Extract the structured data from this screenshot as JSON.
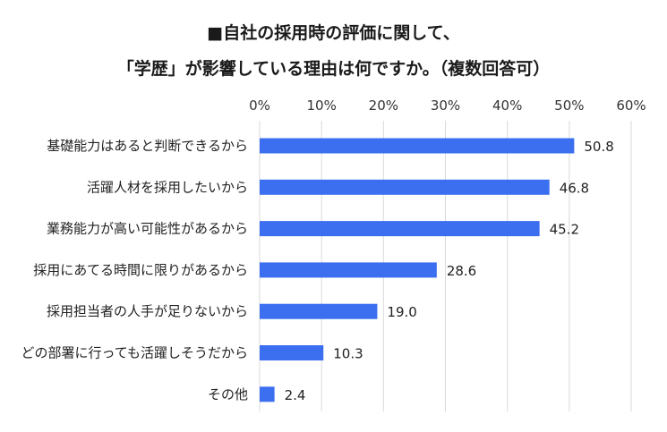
{
  "chart_data": {
    "type": "bar",
    "orientation": "horizontal",
    "title_line1": "■自社の採用時の評価に関して、",
    "title_line2": "「学歴」が影響している理由は何ですか。（複数回答可）",
    "categories": [
      "基礎能力はあると判断できるから",
      "活躍人材を採用したいから",
      "業務能力が高い可能性があるから",
      "採用にあてる時間に限りがあるから",
      "採用担当者の人手が足りないから",
      "どの部署に行っても活躍しそうだから",
      "その他"
    ],
    "values": [
      50.8,
      46.8,
      45.2,
      28.6,
      19.0,
      10.3,
      2.4
    ],
    "value_labels": [
      "50.8",
      "46.8",
      "45.2",
      "28.6",
      "19.0",
      "10.3",
      "2.4"
    ],
    "xlim": [
      0,
      60
    ],
    "xticks": [
      "0%",
      "10%",
      "20%",
      "30%",
      "40%",
      "50%",
      "60%"
    ],
    "grid": true,
    "bar_color": "#3b6ff0",
    "grid_color": "#d9d9d9"
  }
}
